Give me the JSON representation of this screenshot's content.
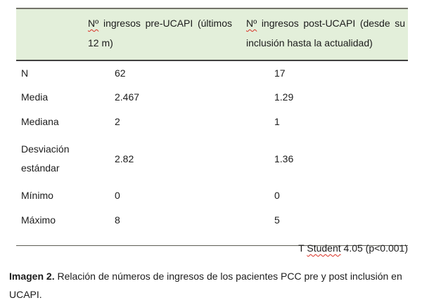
{
  "table": {
    "columns": {
      "pre": {
        "prefix": "Nº",
        "rest": " ingresos pre-UCAPI (últimos 12 m)"
      },
      "post": {
        "prefix": "Nº",
        "rest": " ingresos post-UCAPI (desde su inclusión hasta la actualidad)"
      }
    },
    "rows": [
      {
        "label": "N",
        "pre": "62",
        "post": "17"
      },
      {
        "label": "Media",
        "pre": "2.467",
        "post": "1.29"
      },
      {
        "label": "Mediana",
        "pre": "2",
        "post": "1"
      },
      {
        "label": "Desviación estándar",
        "pre": "2.82",
        "post": "1.36"
      },
      {
        "label": "Mínimo",
        "pre": "0",
        "post": "0"
      },
      {
        "label": "Máximo",
        "pre": "8",
        "post": "5"
      }
    ],
    "footnote": {
      "prefix": "T ",
      "underlined": "Student",
      "suffix": " 4.05 (p<0.001)"
    }
  },
  "caption": {
    "label": "Imagen 2.",
    "text": "Relación de números de ingresos de los pacientes PCC pre y post inclusión en UCAPI."
  },
  "colors": {
    "header_bg": "#e3efda",
    "rule_top": "#73736a",
    "rule_header_bottom": "#404040",
    "rule_bottom": "#5d5d55",
    "spellcheck": "#d93025",
    "text": "#1c1c1c"
  }
}
